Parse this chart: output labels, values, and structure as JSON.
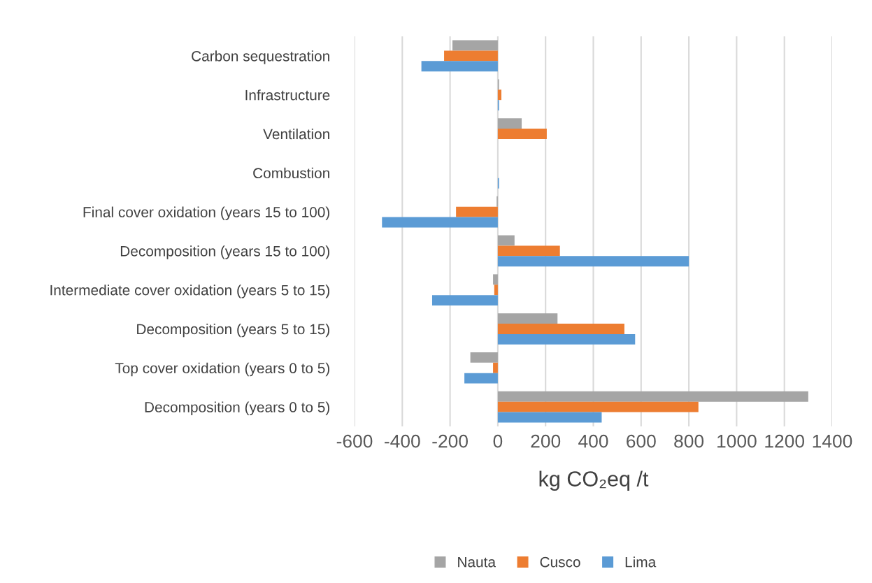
{
  "chart_data": {
    "type": "bar",
    "orientation": "horizontal",
    "xlabel": "kg CO₂eq /t",
    "categories": [
      "Carbon sequestration",
      "Infrastructure",
      "Ventilation",
      "Combustion",
      "Final cover oxidation (years 15 to 100)",
      "Decomposition (years 15 to 100)",
      "Intermediate cover oxidation (years 5 to 15)",
      "Decomposition (years 5 to 15)",
      "Top cover oxidation (years 0 to 5)",
      "Decomposition (years 0 to 5)"
    ],
    "series": [
      {
        "name": "Nauta",
        "color": "#a5a5a5",
        "values": [
          -190,
          5,
          100,
          0,
          -5,
          70,
          -20,
          250,
          -115,
          1300
        ]
      },
      {
        "name": "Cusco",
        "color": "#ed7d31",
        "values": [
          -225,
          15,
          205,
          0,
          -175,
          260,
          -15,
          530,
          -20,
          840
        ]
      },
      {
        "name": "Lima",
        "color": "#5b9bd5",
        "values": [
          -320,
          5,
          0,
          5,
          -485,
          800,
          -275,
          575,
          -140,
          435
        ]
      }
    ],
    "xlim": [
      -600,
      1400
    ],
    "xticks": [
      -600,
      -400,
      -200,
      0,
      200,
      400,
      600,
      800,
      1000,
      1200,
      1400
    ],
    "grid": "x",
    "legend": "bottom"
  }
}
